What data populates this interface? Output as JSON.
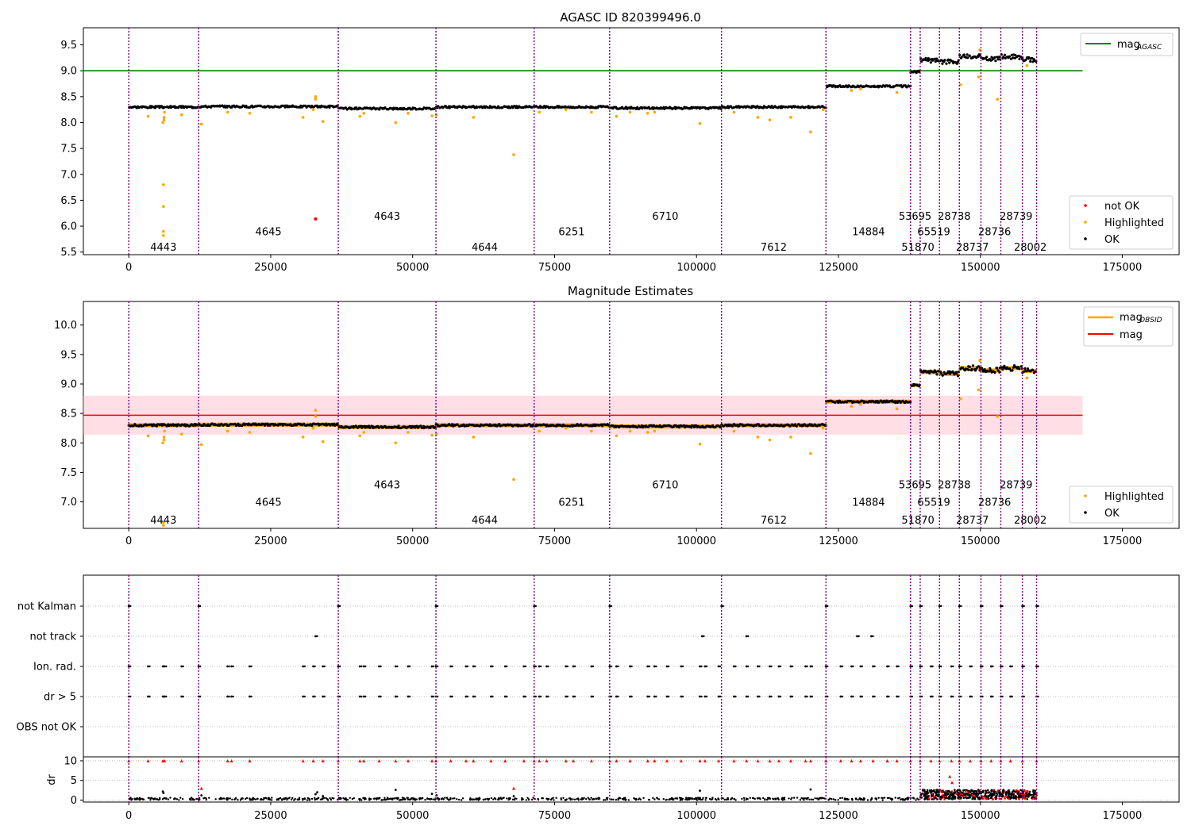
{
  "figure": {
    "background": "#ffffff"
  },
  "chart_data": [
    {
      "type": "scatter",
      "title": "AGASC ID 820399496.0",
      "xlim": [
        -8000,
        185000
      ],
      "ylim": [
        5.45,
        9.83
      ],
      "x_ticks": [
        0,
        25000,
        50000,
        75000,
        100000,
        125000,
        150000,
        175000
      ],
      "y_ticks": [
        5.5,
        6.0,
        6.5,
        7.0,
        7.5,
        8.0,
        8.5,
        9.0,
        9.5
      ],
      "obsid_boundaries": [
        0,
        12300,
        36900,
        54100,
        71400,
        84700,
        104400,
        122800,
        137700,
        139400,
        142800,
        146300,
        150100,
        153600,
        157400,
        159900
      ],
      "obsid_labels": [
        {
          "text": "4443",
          "x": 6100,
          "y": 5.6
        },
        {
          "text": "4645",
          "x": 24600,
          "y": 5.9
        },
        {
          "text": "4643",
          "x": 45500,
          "y": 6.2
        },
        {
          "text": "4644",
          "x": 62700,
          "y": 5.6
        },
        {
          "text": "6251",
          "x": 78000,
          "y": 5.9
        },
        {
          "text": "6710",
          "x": 94500,
          "y": 6.2
        },
        {
          "text": "7612",
          "x": 113600,
          "y": 5.6
        },
        {
          "text": "14884",
          "x": 130300,
          "y": 5.9
        },
        {
          "text": "53695",
          "x": 138500,
          "y": 6.2
        },
        {
          "text": "51870",
          "x": 139000,
          "y": 5.6
        },
        {
          "text": "65519",
          "x": 141800,
          "y": 5.9
        },
        {
          "text": "28738",
          "x": 145400,
          "y": 6.2
        },
        {
          "text": "28737",
          "x": 148600,
          "y": 5.6
        },
        {
          "text": "28736",
          "x": 152500,
          "y": 5.9
        },
        {
          "text": "28739",
          "x": 156300,
          "y": 6.2
        },
        {
          "text": "28002",
          "x": 158800,
          "y": 5.6
        }
      ],
      "segments": [
        {
          "x0": 0,
          "x1": 12300,
          "mag": 8.3
        },
        {
          "x0": 12300,
          "x1": 36900,
          "mag": 8.31
        },
        {
          "x0": 36900,
          "x1": 54100,
          "mag": 8.27
        },
        {
          "x0": 54100,
          "x1": 71400,
          "mag": 8.3
        },
        {
          "x0": 71400,
          "x1": 84700,
          "mag": 8.3
        },
        {
          "x0": 84700,
          "x1": 104400,
          "mag": 8.28
        },
        {
          "x0": 104400,
          "x1": 122800,
          "mag": 8.3
        },
        {
          "x0": 122800,
          "x1": 137700,
          "mag": 8.7
        },
        {
          "x0": 137700,
          "x1": 139400,
          "mag": 8.98
        },
        {
          "x0": 139400,
          "x1": 142800,
          "mag": 9.2
        },
        {
          "x0": 142800,
          "x1": 146300,
          "mag": 9.17
        },
        {
          "x0": 146300,
          "x1": 150100,
          "mag": 9.27
        },
        {
          "x0": 150100,
          "x1": 153600,
          "mag": 9.23
        },
        {
          "x0": 153600,
          "x1": 157400,
          "mag": 9.27
        },
        {
          "x0": 157400,
          "x1": 159900,
          "mag": 9.22
        }
      ],
      "mag_agasc": 9.0,
      "mag_agasc_xlim": [
        -8000,
        168000
      ],
      "highlighted_points": [
        [
          3400,
          8.12
        ],
        [
          6000,
          8.0
        ],
        [
          6100,
          6.8
        ],
        [
          6100,
          6.38
        ],
        [
          6100,
          5.9
        ],
        [
          6100,
          5.82
        ],
        [
          6200,
          8.05
        ],
        [
          6200,
          8.1
        ],
        [
          6300,
          8.2
        ],
        [
          9300,
          8.15
        ],
        [
          12800,
          7.97
        ],
        [
          17400,
          8.2
        ],
        [
          21300,
          8.18
        ],
        [
          30700,
          8.1
        ],
        [
          32500,
          8.25
        ],
        [
          32900,
          8.5
        ],
        [
          32900,
          8.45
        ],
        [
          34200,
          8.02
        ],
        [
          40700,
          8.12
        ],
        [
          41400,
          8.18
        ],
        [
          47000,
          8.0
        ],
        [
          49200,
          8.18
        ],
        [
          53400,
          8.13
        ],
        [
          54200,
          8.15
        ],
        [
          60700,
          8.1
        ],
        [
          67800,
          7.38
        ],
        [
          72300,
          8.2
        ],
        [
          77000,
          8.25
        ],
        [
          81500,
          8.2
        ],
        [
          85900,
          8.12
        ],
        [
          88300,
          8.2
        ],
        [
          91400,
          8.18
        ],
        [
          92600,
          8.2
        ],
        [
          100600,
          7.98
        ],
        [
          106600,
          8.2
        ],
        [
          110800,
          8.1
        ],
        [
          112900,
          8.05
        ],
        [
          116600,
          8.1
        ],
        [
          120100,
          7.82
        ],
        [
          122300,
          8.25
        ],
        [
          127300,
          8.62
        ],
        [
          128900,
          8.65
        ],
        [
          135300,
          8.58
        ],
        [
          146500,
          8.73
        ],
        [
          149700,
          8.88
        ],
        [
          149900,
          9.4
        ],
        [
          153000,
          8.45
        ],
        [
          158200,
          9.1
        ]
      ],
      "not_ok_points": [
        [
          32900,
          6.14
        ]
      ],
      "legend": {
        "position": "top-right",
        "entries": [
          "mag",
          "AGASC"
        ]
      },
      "legend2": {
        "position": "bottom-right",
        "entries": [
          "not OK",
          "Highlighted",
          "OK"
        ]
      }
    },
    {
      "type": "scatter",
      "title": "Magnitude Estimates",
      "xlim": [
        -8000,
        185000
      ],
      "ylim": [
        6.55,
        10.4
      ],
      "x_ticks": [
        0,
        25000,
        50000,
        75000,
        100000,
        125000,
        150000,
        175000
      ],
      "y_ticks": [
        7.0,
        7.5,
        8.0,
        8.5,
        9.0,
        9.5,
        10.0
      ],
      "obsid_labels": [
        {
          "text": "4443",
          "x": 6100,
          "y": 6.7
        },
        {
          "text": "4645",
          "x": 24600,
          "y": 7.0
        },
        {
          "text": "4643",
          "x": 45500,
          "y": 7.3
        },
        {
          "text": "4644",
          "x": 62700,
          "y": 6.7
        },
        {
          "text": "6251",
          "x": 78000,
          "y": 7.0
        },
        {
          "text": "6710",
          "x": 94500,
          "y": 7.3
        },
        {
          "text": "7612",
          "x": 113600,
          "y": 6.7
        },
        {
          "text": "14884",
          "x": 130300,
          "y": 7.0
        },
        {
          "text": "53695",
          "x": 138500,
          "y": 7.3
        },
        {
          "text": "51870",
          "x": 139000,
          "y": 6.7
        },
        {
          "text": "65519",
          "x": 141800,
          "y": 7.0
        },
        {
          "text": "28738",
          "x": 145400,
          "y": 7.3
        },
        {
          "text": "28737",
          "x": 148600,
          "y": 6.7
        },
        {
          "text": "28736",
          "x": 152500,
          "y": 7.0
        },
        {
          "text": "28739",
          "x": 156300,
          "y": 7.3
        },
        {
          "text": "28002",
          "x": 158800,
          "y": 6.7
        }
      ],
      "mag_mean": 8.47,
      "mag_band": [
        8.14,
        8.8
      ],
      "mag_xlim": [
        -8000,
        168000
      ],
      "highlighted_points": [
        [
          3400,
          8.12
        ],
        [
          6000,
          8.0
        ],
        [
          6100,
          6.65
        ],
        [
          6100,
          6.6
        ],
        [
          6200,
          8.05
        ],
        [
          6200,
          8.1
        ],
        [
          6300,
          8.2
        ],
        [
          9300,
          8.15
        ],
        [
          12800,
          7.97
        ],
        [
          17400,
          8.2
        ],
        [
          21300,
          8.18
        ],
        [
          30700,
          8.1
        ],
        [
          32500,
          8.25
        ],
        [
          32900,
          8.55
        ],
        [
          32900,
          8.45
        ],
        [
          34200,
          8.02
        ],
        [
          40700,
          8.12
        ],
        [
          41400,
          8.18
        ],
        [
          47000,
          8.0
        ],
        [
          49200,
          8.18
        ],
        [
          53400,
          8.13
        ],
        [
          54200,
          8.15
        ],
        [
          60700,
          8.1
        ],
        [
          67800,
          7.38
        ],
        [
          72300,
          8.2
        ],
        [
          77000,
          8.25
        ],
        [
          81500,
          8.2
        ],
        [
          85900,
          8.12
        ],
        [
          88300,
          8.2
        ],
        [
          91400,
          8.18
        ],
        [
          92600,
          8.2
        ],
        [
          100600,
          7.98
        ],
        [
          106600,
          8.2
        ],
        [
          110800,
          8.1
        ],
        [
          112900,
          8.05
        ],
        [
          116600,
          8.1
        ],
        [
          120100,
          7.82
        ],
        [
          122300,
          8.25
        ],
        [
          127300,
          8.62
        ],
        [
          128900,
          8.65
        ],
        [
          135300,
          8.58
        ],
        [
          146500,
          8.75
        ],
        [
          149700,
          8.9
        ],
        [
          149900,
          9.4
        ],
        [
          153000,
          8.45
        ],
        [
          158200,
          9.1
        ]
      ],
      "legend": {
        "position": "top-right",
        "entries": [
          "mag",
          "OBSID",
          "mag"
        ]
      },
      "legend2": {
        "position": "bottom-right",
        "entries": [
          "Highlighted",
          "OK"
        ]
      }
    },
    {
      "type": "scatter",
      "xlim": [
        -8000,
        185000
      ],
      "flag_categories": [
        "not Kalman",
        "not track",
        "Ion. rad.",
        "dr > 5",
        "OBS not OK"
      ],
      "flag_events": {
        "not Kalman": [
          0,
          12300,
          36900,
          54100,
          71400,
          84700,
          104400,
          122800,
          137700,
          139400,
          142800,
          146300,
          150100,
          153600,
          157400,
          159900
        ],
        "not track": [
          32900,
          101000,
          108800,
          128300,
          130800
        ],
        "Ion. rad.": [
          0,
          3400,
          6000,
          6300,
          9300,
          12300,
          17400,
          18100,
          21300,
          30700,
          32500,
          34200,
          36900,
          40700,
          41400,
          44100,
          47000,
          49200,
          53400,
          54100,
          56700,
          59400,
          60700,
          63800,
          66300,
          69600,
          71400,
          72300,
          73600,
          77000,
          78300,
          81500,
          84700,
          85900,
          88300,
          91400,
          92600,
          94800,
          97300,
          100600,
          101500,
          103900,
          106600,
          108800,
          110800,
          112900,
          114500,
          116600,
          119200,
          120100,
          122800,
          125400,
          127300,
          128900,
          131100,
          133600,
          135300,
          137700,
          139400,
          141300,
          142800,
          144900,
          146300,
          148200,
          150100,
          151900,
          153600,
          155300,
          157400,
          159900
        ],
        "dr > 5": [
          0,
          3400,
          6000,
          6300,
          9300,
          12300,
          17400,
          18100,
          21300,
          30700,
          32500,
          34200,
          36900,
          40700,
          41400,
          44100,
          47000,
          49200,
          53400,
          54100,
          56700,
          59400,
          60700,
          63800,
          66300,
          69600,
          71400,
          72300,
          73600,
          77000,
          78300,
          81500,
          84700,
          85900,
          88300,
          91400,
          92600,
          94800,
          97300,
          100600,
          101500,
          103900,
          106600,
          108800,
          110800,
          112900,
          114500,
          116600,
          119200,
          120100,
          122800,
          125400,
          127300,
          128900,
          131100,
          133600,
          135300,
          137700,
          139400,
          141300,
          142800,
          144900,
          146300,
          148200,
          150100,
          151900,
          153600,
          155300,
          157400,
          159900
        ],
        "OBS not OK": []
      }
    },
    {
      "type": "scatter",
      "ylabel": "dr",
      "xlim": [
        -8000,
        185000
      ],
      "ylim": [
        -0.5,
        11
      ],
      "x_ticks": [
        0,
        25000,
        50000,
        75000,
        100000,
        125000,
        150000,
        175000
      ],
      "y_ticks": [
        0,
        5,
        10
      ],
      "red_points": [
        [
          0,
          10
        ],
        [
          3400,
          10
        ],
        [
          6000,
          10
        ],
        [
          6300,
          10
        ],
        [
          9300,
          10
        ],
        [
          12300,
          10
        ],
        [
          12800,
          3
        ],
        [
          17400,
          10
        ],
        [
          18100,
          10
        ],
        [
          21300,
          10
        ],
        [
          30700,
          10
        ],
        [
          32500,
          10
        ],
        [
          34200,
          10
        ],
        [
          36900,
          10
        ],
        [
          40700,
          10
        ],
        [
          41400,
          10
        ],
        [
          44100,
          10
        ],
        [
          47000,
          10
        ],
        [
          49200,
          10
        ],
        [
          53400,
          10
        ],
        [
          54100,
          10
        ],
        [
          56700,
          10
        ],
        [
          59400,
          10
        ],
        [
          60700,
          10
        ],
        [
          63800,
          10
        ],
        [
          66300,
          10
        ],
        [
          67800,
          3
        ],
        [
          69600,
          10
        ],
        [
          71400,
          10
        ],
        [
          72300,
          10
        ],
        [
          73600,
          10
        ],
        [
          77000,
          10
        ],
        [
          78300,
          10
        ],
        [
          81500,
          10
        ],
        [
          84700,
          10
        ],
        [
          85900,
          10
        ],
        [
          88300,
          10
        ],
        [
          91400,
          10
        ],
        [
          92600,
          10
        ],
        [
          94800,
          10
        ],
        [
          97300,
          10
        ],
        [
          100600,
          10
        ],
        [
          101500,
          10
        ],
        [
          103900,
          10
        ],
        [
          106600,
          10
        ],
        [
          108800,
          10
        ],
        [
          110800,
          10
        ],
        [
          112900,
          10
        ],
        [
          114500,
          10
        ],
        [
          116600,
          10
        ],
        [
          119200,
          10
        ],
        [
          120100,
          10
        ],
        [
          122800,
          10
        ],
        [
          125400,
          10
        ],
        [
          127300,
          10
        ],
        [
          128900,
          10
        ],
        [
          131100,
          10
        ],
        [
          133600,
          10
        ],
        [
          135300,
          10
        ],
        [
          137700,
          10
        ],
        [
          139400,
          10
        ],
        [
          141300,
          10
        ],
        [
          142800,
          10
        ],
        [
          144600,
          6
        ],
        [
          145000,
          4.5
        ],
        [
          144900,
          10
        ],
        [
          146300,
          10
        ],
        [
          148200,
          10
        ],
        [
          150100,
          10
        ],
        [
          151900,
          10
        ],
        [
          153600,
          10
        ],
        [
          155300,
          10
        ],
        [
          157400,
          10
        ],
        [
          159900,
          10
        ]
      ],
      "black_scatter": [
        [
          6000,
          2.2
        ],
        [
          6100,
          1.8
        ],
        [
          12800,
          1.2
        ],
        [
          32900,
          1.5
        ],
        [
          33200,
          2.0
        ],
        [
          34200,
          1.0
        ],
        [
          47000,
          2.6
        ],
        [
          53400,
          1.6
        ],
        [
          54200,
          1.2
        ],
        [
          67800,
          1.0
        ],
        [
          100600,
          2.4
        ],
        [
          120100,
          2.7
        ]
      ]
    }
  ]
}
